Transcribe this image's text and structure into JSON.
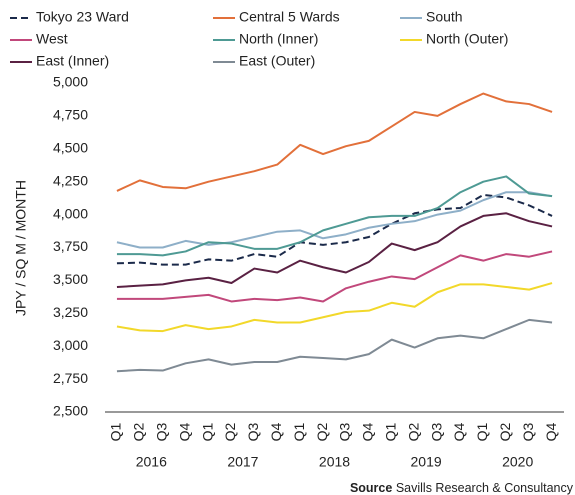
{
  "chart_data": {
    "type": "line",
    "y_label": "JPY / SQ M / MONTH",
    "categories": [
      "Q1",
      "Q2",
      "Q3",
      "Q4",
      "Q1",
      "Q2",
      "Q3",
      "Q4",
      "Q1",
      "Q2",
      "Q3",
      "Q4",
      "Q1",
      "Q2",
      "Q3",
      "Q4",
      "Q1",
      "Q2",
      "Q3",
      "Q4"
    ],
    "years": [
      "2016",
      "2017",
      "2018",
      "2019",
      "2020"
    ],
    "ylim": [
      2500,
      5000
    ],
    "yticks": [
      {
        "value": 2500,
        "label": "2,500"
      },
      {
        "value": 2750,
        "label": "2,750"
      },
      {
        "value": 3000,
        "label": "3,000"
      },
      {
        "value": 3250,
        "label": "3,250"
      },
      {
        "value": 3500,
        "label": "3,500"
      },
      {
        "value": 3750,
        "label": "3,750"
      },
      {
        "value": 4000,
        "label": "4,000"
      },
      {
        "value": 4250,
        "label": "4,250"
      },
      {
        "value": 4500,
        "label": "4,500"
      },
      {
        "value": 4750,
        "label": "4,750"
      },
      {
        "value": 5000,
        "label": "5,000"
      }
    ],
    "grid": false,
    "legend": "top",
    "series": [
      {
        "name": "Tokyo 23 Ward",
        "color": "#1b2a4a",
        "dash": true,
        "values": [
          3630,
          3635,
          3620,
          3620,
          3660,
          3650,
          3700,
          3680,
          3790,
          3770,
          3790,
          3830,
          3930,
          4010,
          4040,
          4050,
          4150,
          4130,
          4070,
          3990
        ]
      },
      {
        "name": "Central 5 Wards",
        "color": "#e2703a",
        "values": [
          4180,
          4260,
          4210,
          4200,
          4250,
          4290,
          4330,
          4380,
          4530,
          4460,
          4520,
          4560,
          4670,
          4780,
          4750,
          4840,
          4920,
          4860,
          4840,
          4780
        ]
      },
      {
        "name": "South",
        "color": "#8eafc8",
        "values": [
          3790,
          3750,
          3750,
          3800,
          3770,
          3790,
          3830,
          3870,
          3880,
          3820,
          3850,
          3900,
          3930,
          3950,
          4000,
          4030,
          4110,
          4170,
          4170,
          4140
        ]
      },
      {
        "name": "West",
        "color": "#c1487b",
        "values": [
          3360,
          3360,
          3360,
          3375,
          3390,
          3340,
          3360,
          3350,
          3370,
          3340,
          3440,
          3490,
          3530,
          3510,
          3600,
          3690,
          3650,
          3700,
          3680,
          3720
        ]
      },
      {
        "name": "North (Inner)",
        "color": "#4e9a94",
        "values": [
          3700,
          3700,
          3690,
          3720,
          3790,
          3780,
          3740,
          3740,
          3790,
          3880,
          3930,
          3980,
          3990,
          3990,
          4050,
          4170,
          4250,
          4290,
          4160,
          4140
        ]
      },
      {
        "name": "North (Outer)",
        "color": "#f2d82a",
        "values": [
          3150,
          3120,
          3115,
          3160,
          3130,
          3150,
          3200,
          3180,
          3180,
          3220,
          3260,
          3270,
          3330,
          3300,
          3410,
          3470,
          3470,
          3450,
          3430,
          3480
        ]
      },
      {
        "name": "East (Inner)",
        "color": "#5a2143",
        "values": [
          3450,
          3460,
          3470,
          3500,
          3520,
          3480,
          3590,
          3560,
          3650,
          3600,
          3560,
          3640,
          3780,
          3730,
          3790,
          3910,
          3990,
          4010,
          3950,
          3910
        ]
      },
      {
        "name": "East (Outer)",
        "color": "#7f8a94",
        "values": [
          2810,
          2820,
          2815,
          2870,
          2900,
          2860,
          2880,
          2880,
          2920,
          2910,
          2900,
          2940,
          3050,
          2990,
          3060,
          3080,
          3060,
          3130,
          3200,
          3180
        ]
      }
    ],
    "source_label": "Source",
    "source_text": "Savills Research & Consultancy"
  }
}
